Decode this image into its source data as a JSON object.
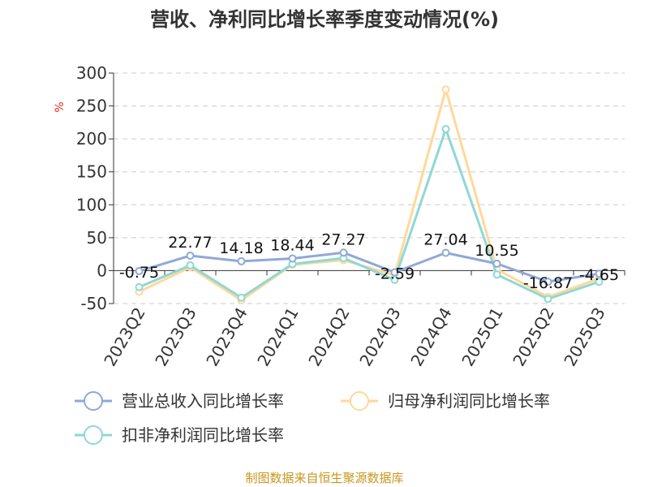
{
  "chart_data": {
    "type": "line",
    "title": "营收、净利同比增长率季度变动情况(%)",
    "ylabel": "%",
    "xlabel": "",
    "ylim": [
      -50,
      300
    ],
    "yticks": [
      "300",
      "250",
      "200",
      "150",
      "100",
      "50",
      "0",
      "-50"
    ],
    "categories": [
      "2023Q2",
      "2023Q3",
      "2023Q4",
      "2024Q1",
      "2024Q2",
      "2024Q3",
      "2024Q4",
      "2025Q1",
      "2025Q2",
      "2025Q3"
    ],
    "grid": true,
    "legend_position": "bottom",
    "series": [
      {
        "name": "营业总收入同比增长率",
        "color": "#8fa8d8",
        "values": [
          -0.75,
          22.77,
          14.18,
          18.44,
          27.27,
          -2.59,
          27.04,
          10.55,
          -16.87,
          -4.65
        ],
        "labels": [
          "-0.75",
          "22.77",
          "14.18",
          "18.44",
          "27.27",
          "-2.59",
          "27.04",
          "10.55",
          "-16.87",
          "-4.65"
        ]
      },
      {
        "name": "归母净利润同比增长率",
        "color": "#ffd89a",
        "values": [
          -32,
          5,
          -45,
          9,
          16,
          -7,
          275,
          2,
          -40,
          -12
        ]
      },
      {
        "name": "扣非净利润同比增长率",
        "color": "#8fd8d4",
        "values": [
          -25,
          8,
          -41,
          10,
          19,
          -14,
          215,
          -6,
          -43,
          -17
        ]
      }
    ]
  },
  "source_text": "制图数据来自恒生聚源数据库"
}
